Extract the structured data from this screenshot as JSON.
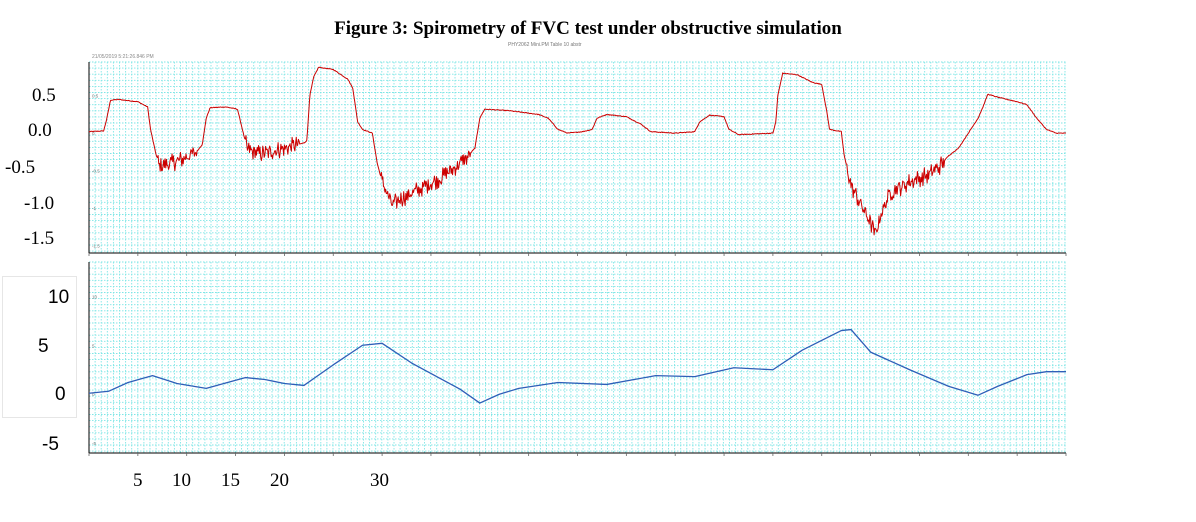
{
  "figure": {
    "title": "Figure 3: Spirometry of FVC test under obstructive simulation",
    "header_text": "21/05/2019 5:21:26.846 PM",
    "sub_text": "PHY2062 Mini.PM Table 10 abstr"
  },
  "colors": {
    "flow_series": "#cc0000",
    "volume_series": "#2e5fb8",
    "grid": "#7fe6e6",
    "axis": "#000000"
  },
  "y_labels_top": [
    "0.5",
    "0.0",
    "-0.5",
    "-1.0",
    "-1.5"
  ],
  "y_labels_bottom": [
    "10",
    "5",
    "0",
    "-5"
  ],
  "x_labels": [
    "5",
    "10",
    "15",
    "20",
    "30"
  ],
  "chart_data": [
    {
      "type": "line",
      "panel": "top",
      "ylim": [
        -1.6,
        0.95
      ],
      "xlim": [
        0,
        100
      ],
      "yticks": [
        0.5,
        0.0,
        -0.5,
        -1.0,
        -1.5
      ],
      "grid": true,
      "noise_scale": 0.12,
      "series": [
        {
          "color": "#cc0000",
          "points": [
            [
              0,
              0.02
            ],
            [
              1.5,
              0.03
            ],
            [
              1.8,
              0.18
            ],
            [
              2.2,
              0.44
            ],
            [
              3,
              0.45
            ],
            [
              5,
              0.42
            ],
            [
              6,
              0.35
            ],
            [
              6.3,
              0.05
            ],
            [
              6.8,
              -0.25
            ],
            [
              7.2,
              -0.45
            ],
            [
              8,
              -0.42
            ],
            [
              9.5,
              -0.35
            ],
            [
              11,
              -0.25
            ],
            [
              11.6,
              -0.15
            ],
            [
              12,
              0.2
            ],
            [
              12.4,
              0.34
            ],
            [
              14,
              0.35
            ],
            [
              15.2,
              0.32
            ],
            [
              15.7,
              0.05
            ],
            [
              16.2,
              -0.22
            ],
            [
              17.5,
              -0.28
            ],
            [
              19.5,
              -0.22
            ],
            [
              22,
              -0.13
            ],
            [
              22.3,
              -0.1
            ],
            [
              22.6,
              0.5
            ],
            [
              23,
              0.75
            ],
            [
              23.5,
              0.88
            ],
            [
              25,
              0.85
            ],
            [
              26.5,
              0.72
            ],
            [
              27,
              0.6
            ],
            [
              27.5,
              0.15
            ],
            [
              28,
              0.05
            ],
            [
              29,
              0.0
            ],
            [
              29.5,
              -0.4
            ],
            [
              30,
              -0.65
            ],
            [
              31,
              -0.95
            ],
            [
              33,
              -0.8
            ],
            [
              36,
              -0.6
            ],
            [
              38.5,
              -0.35
            ],
            [
              39.5,
              -0.2
            ],
            [
              40,
              0.2
            ],
            [
              40.5,
              0.32
            ],
            [
              43,
              0.3
            ],
            [
              46,
              0.25
            ],
            [
              47,
              0.2
            ],
            [
              48,
              0.05
            ],
            [
              49,
              0.0
            ],
            [
              50.5,
              0.02
            ],
            [
              51.5,
              0.05
            ],
            [
              52,
              0.2
            ],
            [
              53,
              0.25
            ],
            [
              55,
              0.22
            ],
            [
              56.5,
              0.12
            ],
            [
              57.5,
              0.02
            ],
            [
              60,
              0.0
            ],
            [
              62,
              0.02
            ],
            [
              62.5,
              0.15
            ],
            [
              63.5,
              0.24
            ],
            [
              65,
              0.22
            ],
            [
              65.5,
              0.05
            ],
            [
              66.5,
              -0.02
            ],
            [
              70,
              0.0
            ],
            [
              70.3,
              0.15
            ],
            [
              70.5,
              0.5
            ],
            [
              71,
              0.8
            ],
            [
              72.5,
              0.78
            ],
            [
              74,
              0.68
            ],
            [
              75,
              0.65
            ],
            [
              75.5,
              0.3
            ],
            [
              75.8,
              0.05
            ],
            [
              77,
              0.02
            ],
            [
              77.3,
              -0.3
            ],
            [
              78,
              -0.7
            ],
            [
              80,
              -1.2
            ],
            [
              80.5,
              -1.35
            ],
            [
              81,
              -1.1
            ],
            [
              82,
              -0.8
            ],
            [
              84,
              -0.65
            ],
            [
              86,
              -0.55
            ],
            [
              87,
              -0.45
            ],
            [
              88,
              -0.3
            ],
            [
              89,
              -0.2
            ],
            [
              90,
              0.0
            ],
            [
              91,
              0.2
            ],
            [
              91.5,
              0.35
            ],
            [
              92,
              0.52
            ],
            [
              93,
              0.48
            ],
            [
              95,
              0.42
            ],
            [
              96,
              0.38
            ],
            [
              97,
              0.2
            ],
            [
              98,
              0.05
            ],
            [
              99,
              0.0
            ],
            [
              100,
              0.0
            ]
          ],
          "noisy_ranges": [
            [
              7,
              11
            ],
            [
              16,
              21.5
            ],
            [
              29.8,
              39
            ],
            [
              77.5,
              87.5
            ]
          ]
        }
      ]
    },
    {
      "type": "line",
      "panel": "bottom",
      "ylim": [
        -6,
        13.5
      ],
      "xlim": [
        0,
        100
      ],
      "yticks": [
        10,
        5,
        0,
        -5
      ],
      "grid": true,
      "series": [
        {
          "color": "#2e5fb8",
          "points": [
            [
              0,
              0.1
            ],
            [
              2,
              0.3
            ],
            [
              4,
              1.2
            ],
            [
              6.5,
              1.9
            ],
            [
              9,
              1.1
            ],
            [
              12,
              0.6
            ],
            [
              16,
              1.7
            ],
            [
              18,
              1.5
            ],
            [
              20,
              1.1
            ],
            [
              22,
              0.9
            ],
            [
              25,
              3.0
            ],
            [
              28,
              5.0
            ],
            [
              30,
              5.2
            ],
            [
              33,
              3.2
            ],
            [
              38,
              0.5
            ],
            [
              40,
              -0.9
            ],
            [
              42,
              0.0
            ],
            [
              44,
              0.6
            ],
            [
              48,
              1.2
            ],
            [
              53,
              1.0
            ],
            [
              58,
              1.9
            ],
            [
              62,
              1.8
            ],
            [
              66,
              2.7
            ],
            [
              70,
              2.5
            ],
            [
              73,
              4.5
            ],
            [
              77,
              6.5
            ],
            [
              78,
              6.6
            ],
            [
              80,
              4.3
            ],
            [
              84,
              2.5
            ],
            [
              88,
              0.8
            ],
            [
              91,
              -0.1
            ],
            [
              93,
              0.8
            ],
            [
              96,
              2.0
            ],
            [
              98,
              2.3
            ],
            [
              100,
              2.3
            ]
          ]
        }
      ]
    }
  ]
}
